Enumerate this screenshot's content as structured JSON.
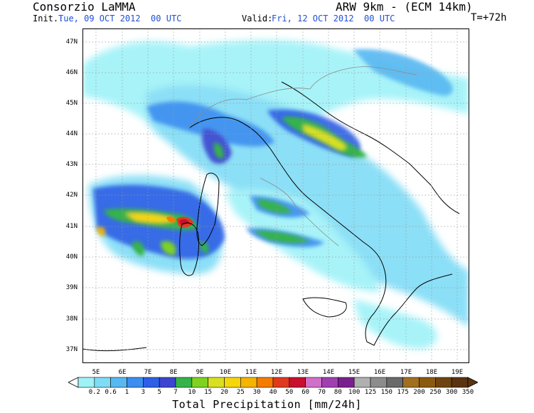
{
  "header": {
    "organization": "Consorzio LaMMA",
    "model": "ARW 9km - (ECM 14km)",
    "init_label": "Init.:",
    "init_value": "Tue, 09 OCT 2012  00 UTC",
    "valid_label": "Valid:",
    "valid_value": "Fri, 12 OCT 2012  00 UTC",
    "forecast_step": "T=+72h"
  },
  "axes": {
    "lat_labels": [
      "47N",
      "46N",
      "45N",
      "44N",
      "43N",
      "42N",
      "41N",
      "40N",
      "39N",
      "38N",
      "37N"
    ],
    "lon_labels": [
      "5E",
      "6E",
      "7E",
      "8E",
      "9E",
      "10E",
      "11E",
      "12E",
      "13E",
      "14E",
      "15E",
      "16E",
      "17E",
      "18E",
      "19E"
    ]
  },
  "colorbar": {
    "title": "Total Precipitation [mm/24h]",
    "labels": [
      "0.2",
      "0.6",
      "1",
      "3",
      "5",
      "7",
      "10",
      "15",
      "20",
      "25",
      "30",
      "40",
      "50",
      "60",
      "70",
      "80",
      "100",
      "125",
      "150",
      "175",
      "200",
      "250",
      "300",
      "350"
    ],
    "colors": [
      "#9ef2f8",
      "#7fdcf6",
      "#58b8f2",
      "#3c8ef0",
      "#2f5fe6",
      "#3c44d0",
      "#35b34a",
      "#7ed321",
      "#d9e021",
      "#f5d60a",
      "#f5b400",
      "#f57c00",
      "#e03a1e",
      "#c8102e",
      "#d070c8",
      "#a040b0",
      "#7a1f8f",
      "#b0b0b0",
      "#8c8c8c",
      "#6a6a6a",
      "#a07020",
      "#8a5a10",
      "#6e4410",
      "#5a3410"
    ]
  }
}
